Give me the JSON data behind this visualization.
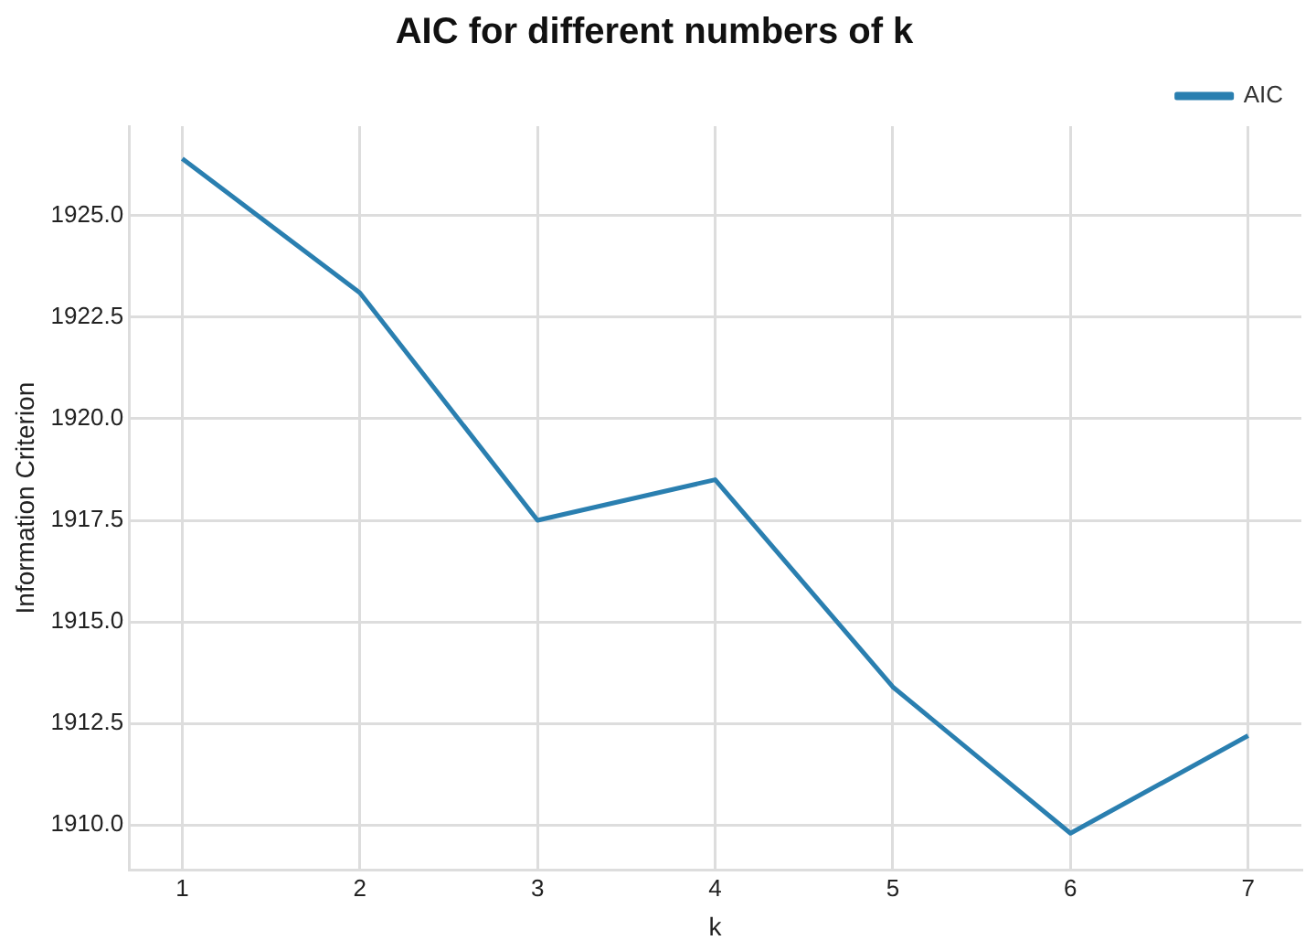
{
  "chart_data": {
    "type": "line",
    "title": "AIC for different numbers of k",
    "xlabel": "k",
    "ylabel": "Information Criterion",
    "x": [
      1,
      2,
      3,
      4,
      5,
      6,
      7
    ],
    "series": [
      {
        "name": "AIC",
        "color": "#2a7fb0",
        "values": [
          1926.4,
          1923.1,
          1917.5,
          1918.5,
          1913.4,
          1909.8,
          1912.2
        ]
      }
    ],
    "xlim": [
      0.7,
      7.3
    ],
    "xticks": [
      1,
      2,
      3,
      4,
      5,
      6,
      7
    ],
    "ylim": [
      1908.9,
      1927.2
    ],
    "yticks": [
      {
        "value": 1910,
        "label": "1910.0"
      },
      {
        "value": 1912.5,
        "label": "1912.5"
      },
      {
        "value": 1915,
        "label": "1915.0"
      },
      {
        "value": 1917.5,
        "label": "1917.5"
      },
      {
        "value": 1920,
        "label": "1920.0"
      },
      {
        "value": 1922.5,
        "label": "1922.5"
      },
      {
        "value": 1925,
        "label": "1925.0"
      }
    ],
    "grid": true,
    "legend": "top right",
    "marker": "none",
    "line_style": "solid"
  }
}
